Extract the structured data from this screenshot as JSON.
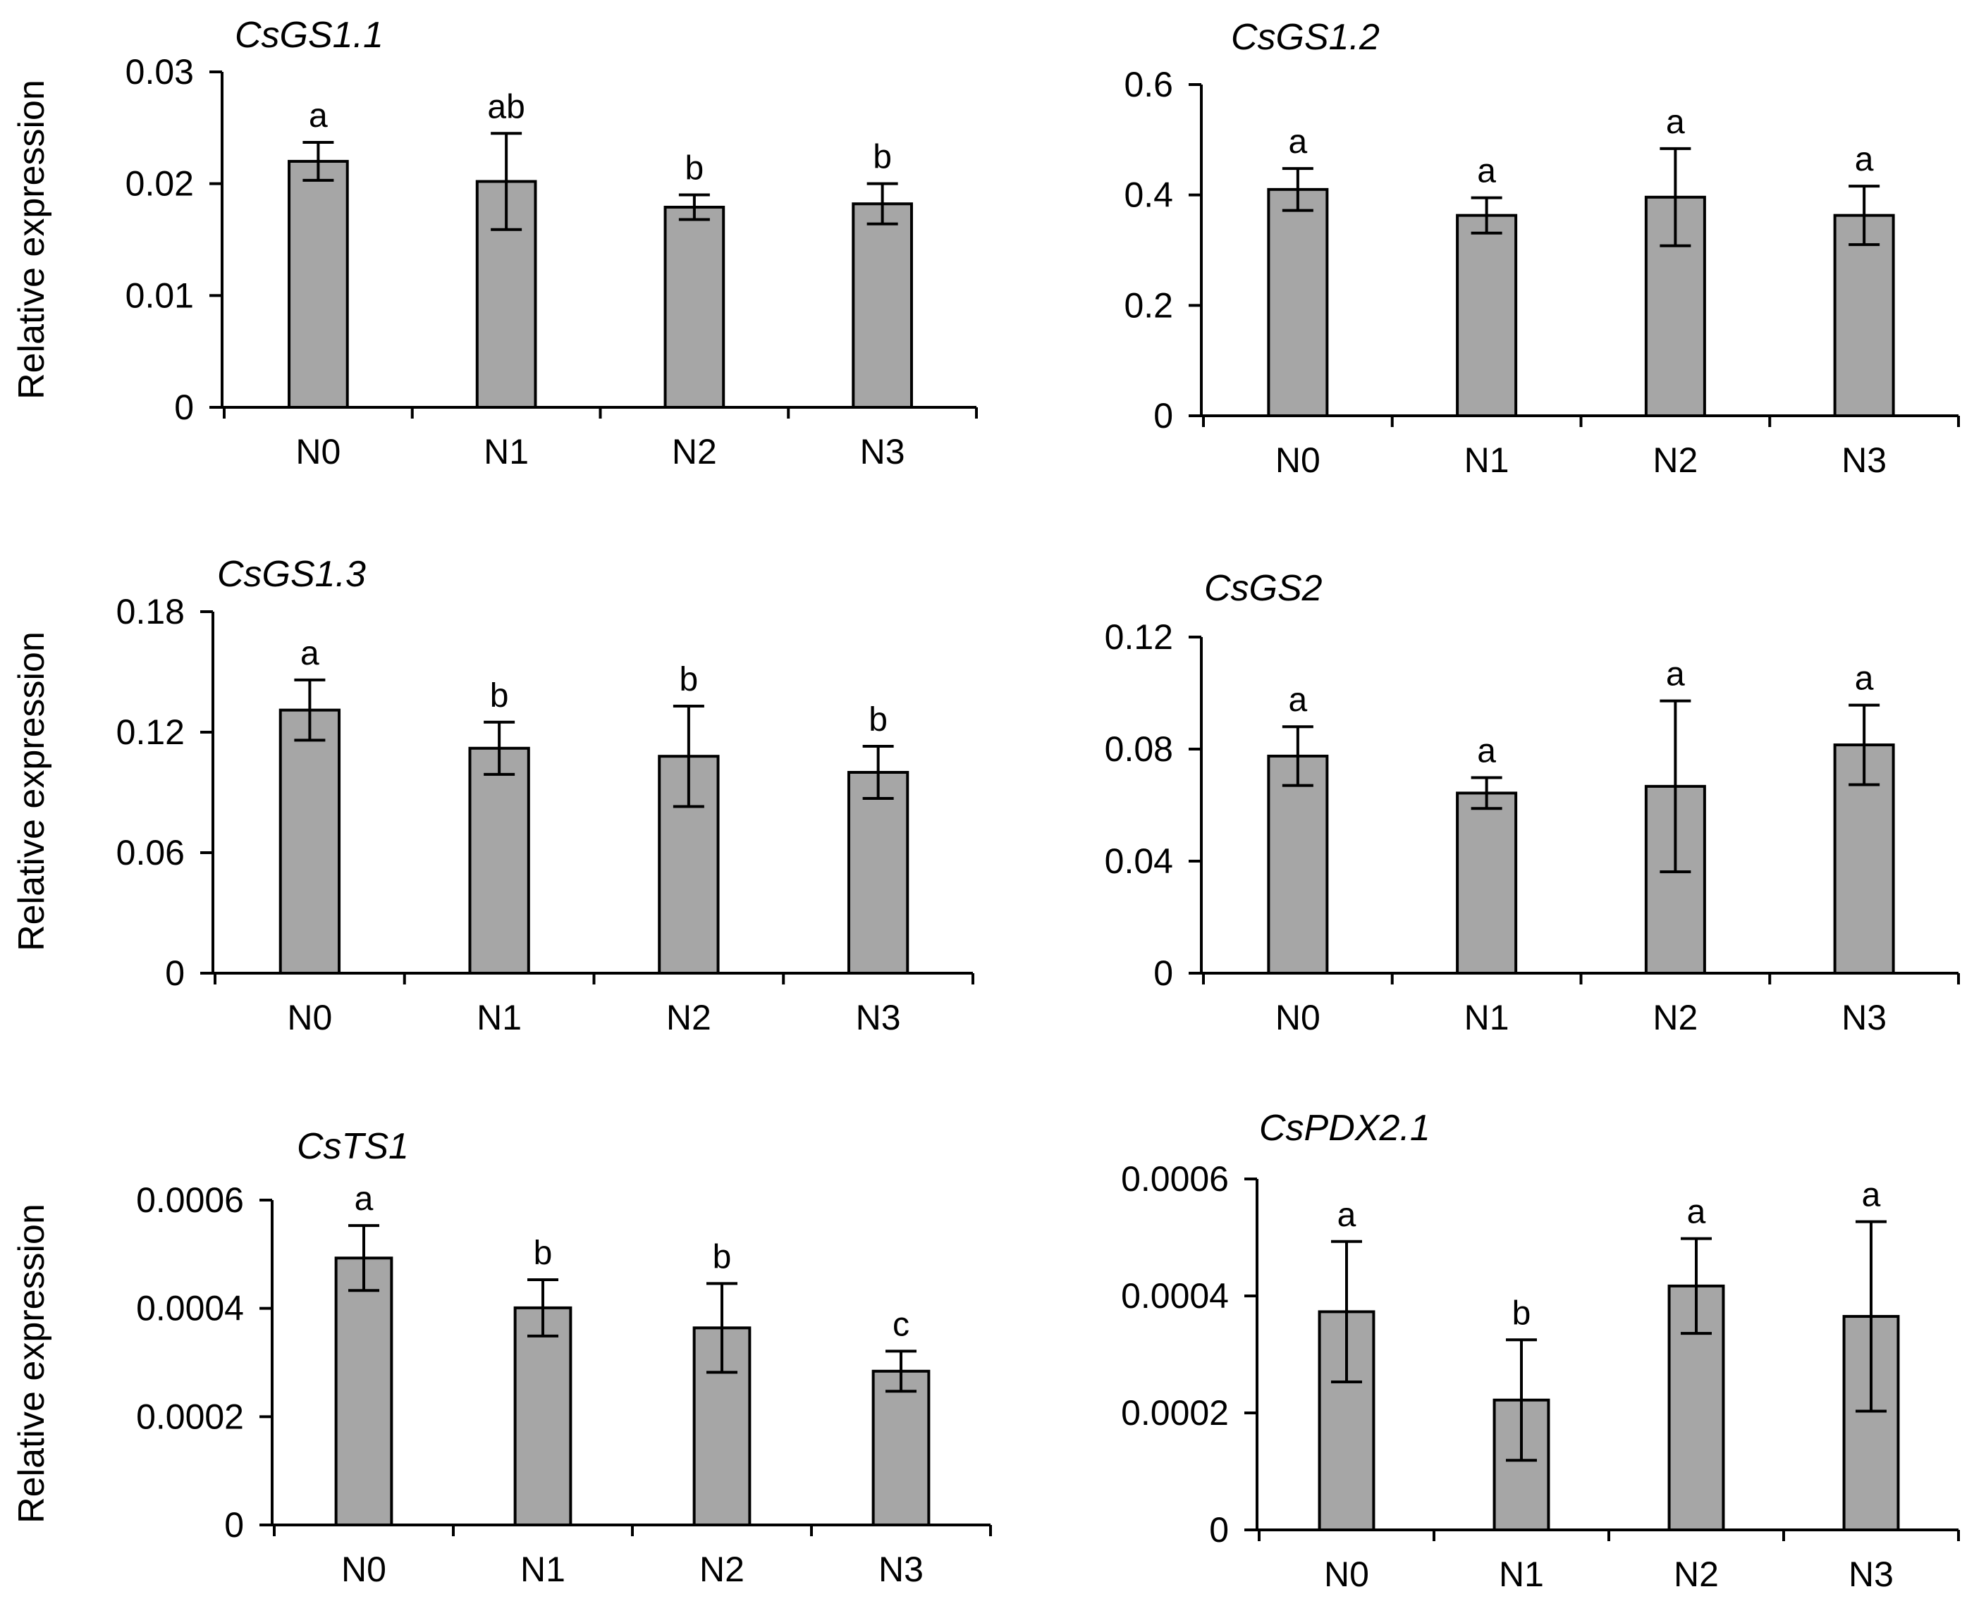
{
  "figure": {
    "y_axis_label": "Relative expression"
  },
  "style": {
    "bar_fill": "#a6a6a6",
    "bar_stroke": "#000000",
    "axis_color": "#000000"
  },
  "chart_data": [
    {
      "type": "bar",
      "title": "CsGS1.1",
      "ylabel": "Relative expression",
      "show_ylabel": true,
      "categories": [
        "N0",
        "N1",
        "N2",
        "N3"
      ],
      "values": [
        0.022,
        0.0202,
        0.0179,
        0.0182
      ],
      "errors": [
        0.0017,
        0.0043,
        0.0011,
        0.0018
      ],
      "significance": [
        "a",
        "ab",
        "b",
        "b"
      ],
      "ylim": [
        0,
        0.03
      ],
      "yticks": [
        0,
        0.01,
        0.02,
        0.03
      ],
      "ytick_labels": [
        "0",
        "0.01",
        "0.02",
        "0.03"
      ]
    },
    {
      "type": "bar",
      "title": "CsGS1.2",
      "ylabel": "",
      "show_ylabel": false,
      "categories": [
        "N0",
        "N1",
        "N2",
        "N3"
      ],
      "values": [
        0.41,
        0.363,
        0.396,
        0.363
      ],
      "errors": [
        0.038,
        0.032,
        0.088,
        0.053
      ],
      "significance": [
        "a",
        "a",
        "a",
        "a"
      ],
      "ylim": [
        0,
        0.6
      ],
      "yticks": [
        0,
        0.2,
        0.4,
        0.6
      ],
      "ytick_labels": [
        "0",
        "0.2",
        "0.4",
        "0.6"
      ]
    },
    {
      "type": "bar",
      "title": "CsGS1.3",
      "ylabel": "Relative expression",
      "show_ylabel": true,
      "categories": [
        "N0",
        "N1",
        "N2",
        "N3"
      ],
      "values": [
        0.131,
        0.112,
        0.108,
        0.1
      ],
      "errors": [
        0.015,
        0.013,
        0.025,
        0.013
      ],
      "significance": [
        "a",
        "b",
        "b",
        "b"
      ],
      "ylim": [
        0,
        0.18
      ],
      "yticks": [
        0,
        0.06,
        0.12,
        0.18
      ],
      "ytick_labels": [
        "0",
        "0.06",
        "0.12",
        "0.18"
      ]
    },
    {
      "type": "bar",
      "title": "CsGS2",
      "ylabel": "",
      "show_ylabel": false,
      "categories": [
        "N0",
        "N1",
        "N2",
        "N3"
      ],
      "values": [
        0.0775,
        0.0643,
        0.0667,
        0.0815
      ],
      "errors": [
        0.0105,
        0.0055,
        0.0305,
        0.0142
      ],
      "significance": [
        "a",
        "a",
        "a",
        "a"
      ],
      "ylim": [
        0,
        0.12
      ],
      "yticks": [
        0,
        0.04,
        0.08,
        0.12
      ],
      "ytick_labels": [
        "0",
        "0.04",
        "0.08",
        "0.12"
      ]
    },
    {
      "type": "bar",
      "title": "CsTS1",
      "ylabel": "Relative expression",
      "show_ylabel": true,
      "categories": [
        "N0",
        "N1",
        "N2",
        "N3"
      ],
      "values": [
        0.000493,
        0.000401,
        0.000364,
        0.000284
      ],
      "errors": [
        6e-05,
        5.2e-05,
        8.2e-05,
        3.7e-05
      ],
      "significance": [
        "a",
        "b",
        "b",
        "c"
      ],
      "ylim": [
        0,
        0.0006
      ],
      "yticks": [
        0,
        0.0002,
        0.0004,
        0.0006
      ],
      "ytick_labels": [
        "0",
        "0.0002",
        "0.0004",
        "0.0006"
      ]
    },
    {
      "type": "bar",
      "title": "CsPDX2.1",
      "ylabel": "",
      "show_ylabel": false,
      "categories": [
        "N0",
        "N1",
        "N2",
        "N3"
      ],
      "values": [
        0.000373,
        0.000222,
        0.000417,
        0.000365
      ],
      "errors": [
        0.00012,
        0.000103,
        8.1e-05,
        0.000162
      ],
      "significance": [
        "a",
        "b",
        "a",
        "a"
      ],
      "ylim": [
        0,
        0.0006
      ],
      "yticks": [
        0,
        0.0002,
        0.0004,
        0.0006
      ],
      "ytick_labels": [
        "0",
        "0.0002",
        "0.0004",
        "0.0006"
      ]
    }
  ]
}
